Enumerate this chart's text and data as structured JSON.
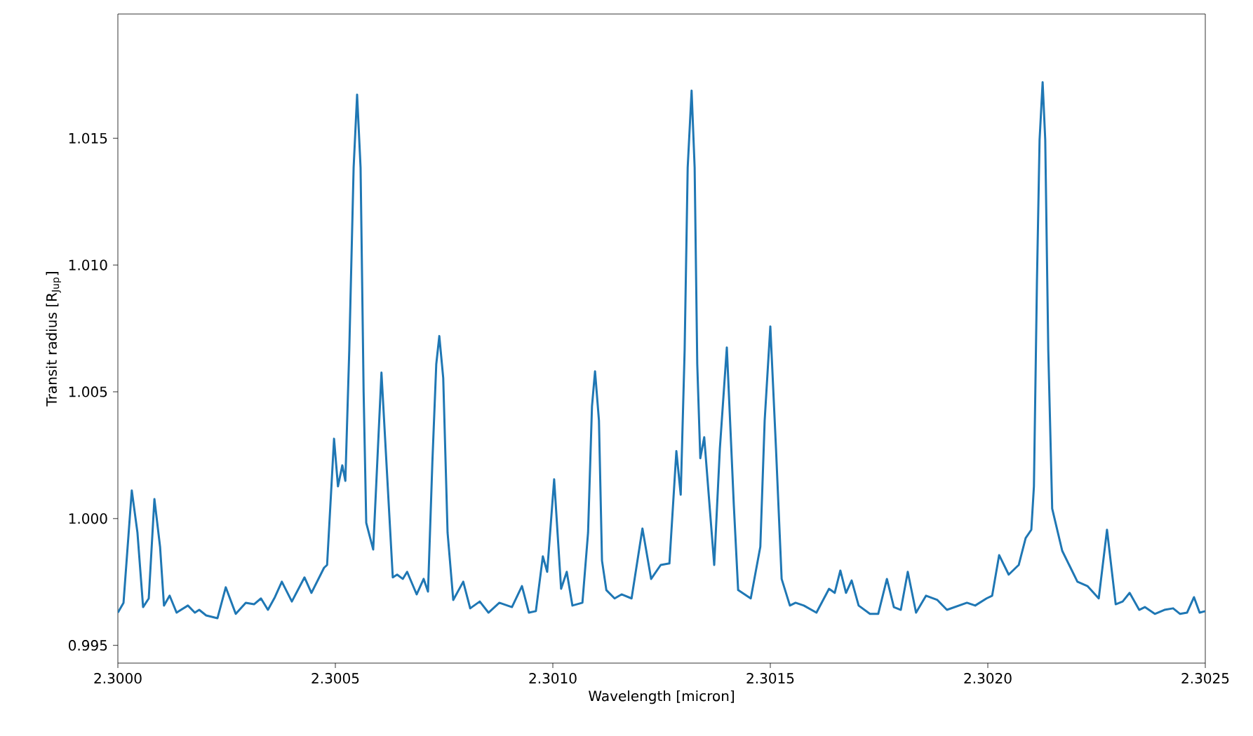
{
  "chart_data": {
    "type": "line",
    "xlabel": "Wavelength [micron]",
    "ylabel": "Transit radius [R$_{Jup}$]",
    "xlim": [
      2.3,
      2.3025
    ],
    "ylim": [
      0.9943,
      1.0199
    ],
    "xticks": [
      {
        "value": 2.3,
        "label": "2.3000"
      },
      {
        "value": 2.3005,
        "label": "2.3005"
      },
      {
        "value": 2.301,
        "label": "2.3010"
      },
      {
        "value": 2.3015,
        "label": "2.3015"
      },
      {
        "value": 2.302,
        "label": "2.3020"
      },
      {
        "value": 2.3025,
        "label": "2.3025"
      }
    ],
    "yticks": [
      0.995,
      {
        "value": 1.0,
        "label": "1.000"
      },
      1.005,
      {
        "value": 1.01,
        "label": "1.010"
      },
      1.015
    ],
    "grid": false,
    "marker": "none",
    "line_style": "solid",
    "series": [
      {
        "color": "#1f77b4",
        "x": [
          2.3,
          2.300013,
          2.300032,
          2.300045,
          2.300058,
          2.300071,
          2.300084,
          2.300097,
          2.300106,
          2.300119,
          2.300135,
          2.300161,
          2.300177,
          2.300187,
          2.300203,
          2.300229,
          2.300248,
          2.300271,
          2.300294,
          2.300313,
          2.300329,
          2.300345,
          2.300361,
          2.300377,
          2.3004,
          2.300429,
          2.300445,
          2.300474,
          2.300481,
          2.300497,
          2.300506,
          2.300516,
          2.300523,
          2.300532,
          2.300542,
          2.30055,
          2.300558,
          2.300565,
          2.300571,
          2.300587,
          2.300606,
          2.300632,
          2.300642,
          2.300655,
          2.300665,
          2.300687,
          2.300703,
          2.300713,
          2.300723,
          2.300732,
          2.300739,
          2.300748,
          2.300758,
          2.300771,
          2.300794,
          2.30081,
          2.300832,
          2.300852,
          2.300877,
          2.300906,
          2.300929,
          2.300945,
          2.300961,
          2.300977,
          2.300987,
          2.301003,
          2.301019,
          2.301032,
          2.301045,
          2.301068,
          2.301081,
          2.30109,
          2.301097,
          2.301106,
          2.301113,
          2.301123,
          2.301142,
          2.301158,
          2.301181,
          2.301206,
          2.301226,
          2.301248,
          2.301268,
          2.301284,
          2.301294,
          2.301303,
          2.30131,
          2.301319,
          2.301326,
          2.301332,
          2.301339,
          2.301348,
          2.301371,
          2.301384,
          2.3014,
          2.301416,
          2.301426,
          2.301455,
          2.301477,
          2.301487,
          2.3015,
          2.301513,
          2.301526,
          2.301545,
          2.301558,
          2.301577,
          2.301606,
          2.301635,
          2.301648,
          2.301661,
          2.301674,
          2.301687,
          2.301703,
          2.301729,
          2.301748,
          2.301768,
          2.301784,
          2.3018,
          2.301816,
          2.301835,
          2.301858,
          2.301884,
          2.301906,
          2.301952,
          2.301971,
          2.301997,
          2.30201,
          2.302026,
          2.302048,
          2.302071,
          2.302087,
          2.3021,
          2.302106,
          2.302113,
          2.302119,
          2.302126,
          2.302132,
          2.302139,
          2.302148,
          2.302171,
          2.302206,
          2.302229,
          2.302255,
          2.302274,
          2.302294,
          2.30231,
          2.302326,
          2.302348,
          2.302361,
          2.302384,
          2.302406,
          2.302426,
          2.302442,
          2.302458,
          2.302474,
          2.302487,
          2.3025
        ],
        "values": [
          0.99629,
          0.99668,
          1.00111,
          0.99945,
          0.99651,
          0.99685,
          1.00077,
          0.99889,
          0.99657,
          0.99696,
          0.99629,
          0.99657,
          0.99629,
          0.9964,
          0.99618,
          0.99607,
          0.99729,
          0.99624,
          0.99668,
          0.99662,
          0.99685,
          0.9964,
          0.9969,
          0.99751,
          0.99673,
          0.99768,
          0.99707,
          0.99806,
          0.99817,
          1.00315,
          1.00127,
          1.0021,
          1.00149,
          1.00664,
          1.01384,
          1.01672,
          1.01384,
          1.00498,
          0.99983,
          0.99878,
          1.00576,
          0.99768,
          0.99779,
          0.99762,
          0.9979,
          0.99701,
          0.99762,
          0.99712,
          1.00221,
          1.00609,
          1.0072,
          1.00554,
          0.99945,
          0.99679,
          0.99751,
          0.99646,
          0.99673,
          0.99629,
          0.99668,
          0.99651,
          0.99734,
          0.99629,
          0.99635,
          0.99851,
          0.9979,
          1.00155,
          0.99723,
          0.9979,
          0.99657,
          0.99668,
          0.99945,
          1.00443,
          1.00581,
          1.00387,
          0.99834,
          0.99718,
          0.99685,
          0.99701,
          0.99685,
          0.99961,
          0.99762,
          0.99817,
          0.99823,
          1.00266,
          1.00094,
          1.00664,
          1.01384,
          1.01688,
          1.01384,
          1.00609,
          1.00238,
          1.00321,
          0.99817,
          1.00277,
          1.00675,
          1.00055,
          0.99718,
          0.99685,
          0.99889,
          1.00387,
          1.00758,
          1.00277,
          0.99762,
          0.99657,
          0.99668,
          0.99657,
          0.99629,
          0.99723,
          0.99707,
          0.99795,
          0.99707,
          0.99756,
          0.99657,
          0.99624,
          0.99624,
          0.99762,
          0.99651,
          0.9964,
          0.9979,
          0.99629,
          0.99696,
          0.99679,
          0.9964,
          0.99668,
          0.99657,
          0.99685,
          0.99696,
          0.99856,
          0.99779,
          0.99817,
          0.99923,
          0.99956,
          1.00127,
          1.00941,
          1.01494,
          1.01721,
          1.01494,
          1.00664,
          1.00039,
          0.99873,
          0.99751,
          0.99734,
          0.99685,
          0.99956,
          0.99662,
          0.99673,
          0.99707,
          0.9964,
          0.99651,
          0.99624,
          0.9964,
          0.99646,
          0.99624,
          0.99629,
          0.9969,
          0.99629,
          0.99635
        ]
      }
    ]
  }
}
